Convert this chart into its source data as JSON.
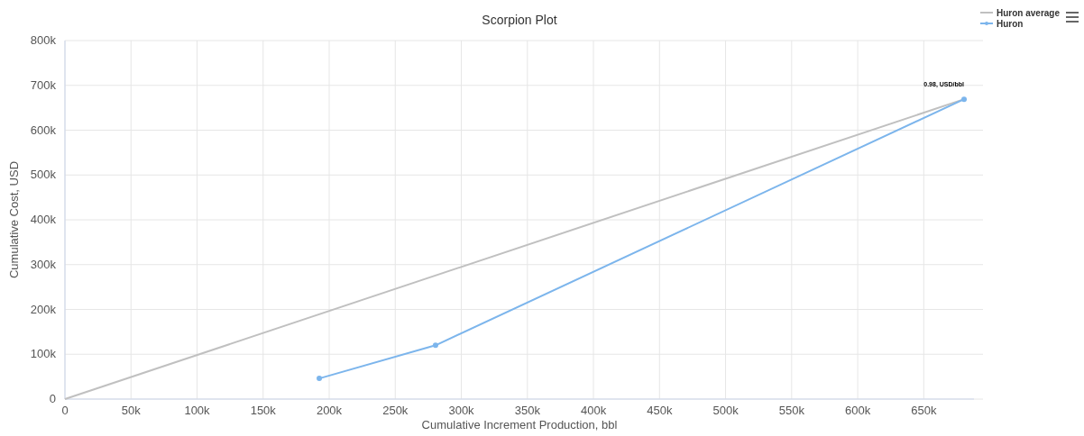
{
  "chart_data": {
    "type": "line",
    "title": "Scorpion Plot",
    "xlabel": "Cumulative Increment Production, bbl",
    "ylabel": "Cumulative Cost, USD",
    "xlim": [
      0,
      688000
    ],
    "xticks": [
      {
        "value": 0,
        "label": "0"
      },
      {
        "value": 50000,
        "label": "50k"
      },
      {
        "value": 100000,
        "label": "100k"
      },
      {
        "value": 150000,
        "label": "150k"
      },
      {
        "value": 200000,
        "label": "200k"
      },
      {
        "value": 250000,
        "label": "250k"
      },
      {
        "value": 300000,
        "label": "300k"
      },
      {
        "value": 350000,
        "label": "350k"
      },
      {
        "value": 400000,
        "label": "400k"
      },
      {
        "value": 450000,
        "label": "450k"
      },
      {
        "value": 500000,
        "label": "500k"
      },
      {
        "value": 550000,
        "label": "550k"
      },
      {
        "value": 600000,
        "label": "600k"
      },
      {
        "value": 650000,
        "label": "650k"
      }
    ],
    "ylim": [
      0,
      800000
    ],
    "yticks": [
      {
        "value": 0,
        "label": "0"
      },
      {
        "value": 100000,
        "label": "100k"
      },
      {
        "value": 200000,
        "label": "200k"
      },
      {
        "value": 300000,
        "label": "300k"
      },
      {
        "value": 400000,
        "label": "400k"
      },
      {
        "value": 500000,
        "label": "500k"
      },
      {
        "value": 600000,
        "label": "600k"
      },
      {
        "value": 700000,
        "label": "700k"
      },
      {
        "value": 800000,
        "label": "800k"
      }
    ],
    "grid": true,
    "legend": "top right",
    "series": [
      {
        "name": "Huron average",
        "color": "#c0c0c0",
        "x": [
          0,
          680500
        ],
        "values": [
          0,
          669000
        ],
        "marker": "none"
      },
      {
        "name": "Huron",
        "color": "#7cb5ec",
        "x": [
          192500,
          280500,
          680500
        ],
        "values": [
          46000,
          120000,
          669000
        ],
        "marker": "circle"
      }
    ],
    "annotations": [
      {
        "text": "0.98, USD/bbl",
        "x": 680500,
        "y": 669000
      }
    ]
  }
}
